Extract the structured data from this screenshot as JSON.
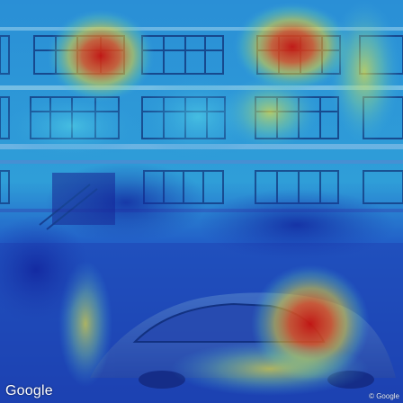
{
  "logo": {
    "text": "Google"
  },
  "copyright": {
    "text": "© Google"
  },
  "heatmap": {
    "base_color": "#1c3fb0",
    "hot_color": "#d81a10"
  }
}
